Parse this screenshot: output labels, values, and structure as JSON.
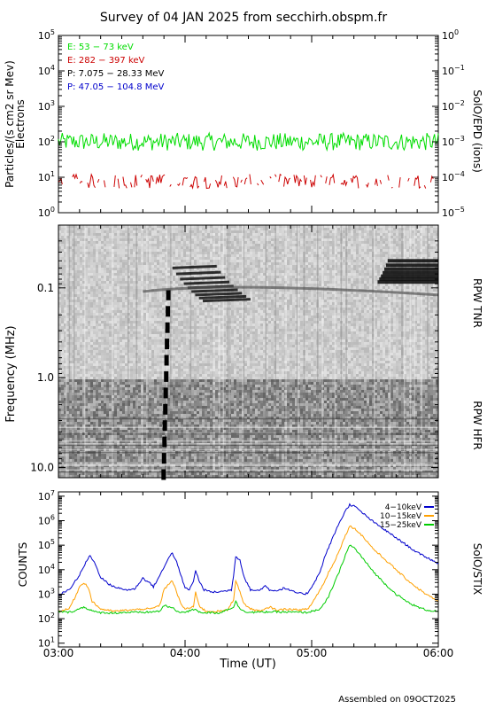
{
  "title": "Survey of 04 JAN 2025 from secchirh.obspm.fr",
  "footer": "Assembled on 09OCT2025",
  "chart_data": [
    {
      "type": "line",
      "panel": "epd",
      "ylabel_left": "Particles/(s cm2 sr Mev)",
      "ylabel_left2": "Electrons",
      "ylabel_right": "SolO/EPD (ions)",
      "log_y": true,
      "ylim_left": [
        1,
        100000
      ],
      "ylim_right": [
        1e-05,
        1
      ],
      "yticks_left": [
        {
          "base": "10",
          "exp": "0",
          "value": 1
        },
        {
          "base": "10",
          "exp": "1",
          "value": 10
        },
        {
          "base": "10",
          "exp": "2",
          "value": 100
        },
        {
          "base": "10",
          "exp": "3",
          "value": 1000
        },
        {
          "base": "10",
          "exp": "4",
          "value": 10000
        },
        {
          "base": "10",
          "exp": "5",
          "value": 100000
        }
      ],
      "yticks_right": [
        {
          "base": "10",
          "exp": "−5",
          "value": 1e-05
        },
        {
          "base": "10",
          "exp": "−4",
          "value": 0.0001
        },
        {
          "base": "10",
          "exp": "−3",
          "value": 0.001
        },
        {
          "base": "10",
          "exp": "−2",
          "value": 0.01
        },
        {
          "base": "10",
          "exp": "−1",
          "value": 0.1
        },
        {
          "base": "10",
          "exp": "0",
          "value": 1
        }
      ],
      "legend": [
        {
          "label": "E: 53 − 73 keV",
          "color": "#00dd00"
        },
        {
          "label": "E: 282 − 397 keV",
          "color": "#cc0000"
        },
        {
          "label": "P: 7.075 − 28.33 MeV",
          "color": "#000000"
        },
        {
          "label": "P: 47.05 − 104.8 MeV",
          "color": "#0000cc"
        }
      ],
      "series": [
        {
          "label": "E: 53 − 73 keV",
          "color": "#00dd00",
          "level": 100,
          "spread": 0.25
        },
        {
          "label": "E: 282 − 397 keV",
          "color": "#cc0000",
          "level": 7,
          "spread": 0.2
        }
      ]
    },
    {
      "type": "heatmap",
      "panel": "rpw",
      "ylabel": "Frequency (MHz)",
      "label_tnr": "RPW TNR",
      "label_hfr": "RPW HFR",
      "log_y": true,
      "inverted": true,
      "ylim": [
        0.02,
        13
      ],
      "boundary_mhz": 1.0,
      "yticks": [
        {
          "label": "0.1",
          "value": 0.1
        },
        {
          "label": "1.0",
          "value": 1.0
        },
        {
          "label": "10.0",
          "value": 10.0
        }
      ],
      "bursts": [
        {
          "name": "type-III burst",
          "t_start_min": 50,
          "t_peak_min": 51,
          "freq_low": 0.06,
          "freq_high": 12
        },
        {
          "name": "late emission",
          "t_start_min": 150,
          "freq_low": 0.05,
          "freq_high": 0.09
        }
      ]
    },
    {
      "type": "line",
      "panel": "stix",
      "ylabel": "COUNTS",
      "ylabel_right": "SolO/STIX",
      "xlabel": "Time (UT)",
      "log_y": true,
      "ylim": [
        7,
        15000000
      ],
      "xlim_min": [
        0,
        180
      ],
      "xticks": [
        {
          "label": "03:00",
          "value": 0
        },
        {
          "label": "04:00",
          "value": 60
        },
        {
          "label": "05:00",
          "value": 120
        },
        {
          "label": "06:00",
          "value": 180
        }
      ],
      "yticks": [
        {
          "base": "10",
          "exp": "1",
          "value": 10
        },
        {
          "base": "10",
          "exp": "2",
          "value": 100
        },
        {
          "base": "10",
          "exp": "3",
          "value": 1000
        },
        {
          "base": "10",
          "exp": "4",
          "value": 10000
        },
        {
          "base": "10",
          "exp": "5",
          "value": 100000
        },
        {
          "base": "10",
          "exp": "6",
          "value": 1000000
        },
        {
          "base": "10",
          "exp": "7",
          "value": 10000000
        }
      ],
      "series": [
        {
          "name": "4−10keV",
          "color": "#0000cc",
          "points": [
            [
              0,
              900
            ],
            [
              5,
              1500
            ],
            [
              10,
              6000
            ],
            [
              13,
              20000
            ],
            [
              15,
              38000
            ],
            [
              17,
              20000
            ],
            [
              20,
              5000
            ],
            [
              24,
              2500
            ],
            [
              28,
              1800
            ],
            [
              32,
              1500
            ],
            [
              36,
              1600
            ],
            [
              40,
              4500
            ],
            [
              43,
              3000
            ],
            [
              45,
              2000
            ],
            [
              47,
              4000
            ],
            [
              50,
              12000
            ],
            [
              52,
              30000
            ],
            [
              54,
              48000
            ],
            [
              56,
              20000
            ],
            [
              58,
              6000
            ],
            [
              60,
              1800
            ],
            [
              62,
              1500
            ],
            [
              64,
              3500
            ],
            [
              65,
              9000
            ],
            [
              67,
              3000
            ],
            [
              69,
              1500
            ],
            [
              73,
              1200
            ],
            [
              78,
              1300
            ],
            [
              82,
              1500
            ],
            [
              83,
              6000
            ],
            [
              84,
              35000
            ],
            [
              86,
              25000
            ],
            [
              88,
              5000
            ],
            [
              91,
              1500
            ],
            [
              95,
              1400
            ],
            [
              98,
              2200
            ],
            [
              100,
              1500
            ],
            [
              104,
              1400
            ],
            [
              107,
              1800
            ],
            [
              109,
              1500
            ],
            [
              112,
              1200
            ],
            [
              116,
              1000
            ],
            [
              118,
              1100
            ],
            [
              120,
              2000
            ],
            [
              122,
              4000
            ],
            [
              124,
              8000
            ],
            [
              126,
              30000
            ],
            [
              128,
              80000
            ],
            [
              130,
              200000
            ],
            [
              133,
              800000
            ],
            [
              136,
              2500000
            ],
            [
              138,
              4500000
            ],
            [
              140,
              4000000
            ],
            [
              143,
              2500000
            ],
            [
              146,
              1500000
            ],
            [
              150,
              800000
            ],
            [
              155,
              400000
            ],
            [
              160,
              200000
            ],
            [
              165,
              100000
            ],
            [
              170,
              50000
            ],
            [
              175,
              30000
            ],
            [
              180,
              18000
            ]
          ]
        },
        {
          "name": "10−15keV",
          "color": "#ffa000",
          "points": [
            [
              0,
              200
            ],
            [
              5,
              250
            ],
            [
              8,
              800
            ],
            [
              10,
              2000
            ],
            [
              12,
              3000
            ],
            [
              14,
              2000
            ],
            [
              16,
              500
            ],
            [
              20,
              250
            ],
            [
              26,
              200
            ],
            [
              32,
              220
            ],
            [
              36,
              230
            ],
            [
              40,
              250
            ],
            [
              44,
              250
            ],
            [
              48,
              350
            ],
            [
              50,
              1500
            ],
            [
              52,
              2500
            ],
            [
              54,
              3500
            ],
            [
              56,
              1200
            ],
            [
              58,
              400
            ],
            [
              60,
              250
            ],
            [
              64,
              300
            ],
            [
              65,
              1200
            ],
            [
              67,
              300
            ],
            [
              70,
              200
            ],
            [
              76,
              200
            ],
            [
              80,
              220
            ],
            [
              83,
              600
            ],
            [
              84,
              3800
            ],
            [
              86,
              1200
            ],
            [
              88,
              400
            ],
            [
              91,
              250
            ],
            [
              96,
              200
            ],
            [
              100,
              300
            ],
            [
              104,
              220
            ],
            [
              108,
              250
            ],
            [
              113,
              230
            ],
            [
              118,
              240
            ],
            [
              120,
              400
            ],
            [
              122,
              800
            ],
            [
              124,
              1500
            ],
            [
              126,
              3000
            ],
            [
              128,
              8000
            ],
            [
              130,
              15000
            ],
            [
              133,
              60000
            ],
            [
              136,
              250000
            ],
            [
              138,
              600000
            ],
            [
              140,
              500000
            ],
            [
              143,
              300000
            ],
            [
              146,
              150000
            ],
            [
              150,
              60000
            ],
            [
              155,
              25000
            ],
            [
              160,
              10000
            ],
            [
              165,
              4000
            ],
            [
              170,
              1800
            ],
            [
              175,
              900
            ],
            [
              180,
              500
            ]
          ]
        },
        {
          "name": "15−25keV",
          "color": "#00cc00",
          "points": [
            [
              0,
              200
            ],
            [
              5,
              180
            ],
            [
              10,
              250
            ],
            [
              12,
              300
            ],
            [
              14,
              250
            ],
            [
              18,
              180
            ],
            [
              26,
              170
            ],
            [
              32,
              180
            ],
            [
              40,
              180
            ],
            [
              48,
              200
            ],
            [
              50,
              350
            ],
            [
              52,
              300
            ],
            [
              54,
              280
            ],
            [
              56,
              200
            ],
            [
              60,
              180
            ],
            [
              65,
              250
            ],
            [
              67,
              180
            ],
            [
              76,
              170
            ],
            [
              83,
              300
            ],
            [
              84,
              500
            ],
            [
              86,
              250
            ],
            [
              90,
              180
            ],
            [
              100,
              190
            ],
            [
              110,
              185
            ],
            [
              118,
              180
            ],
            [
              120,
              200
            ],
            [
              124,
              250
            ],
            [
              126,
              400
            ],
            [
              128,
              800
            ],
            [
              130,
              2000
            ],
            [
              133,
              8000
            ],
            [
              136,
              40000
            ],
            [
              138,
              100000
            ],
            [
              140,
              80000
            ],
            [
              143,
              40000
            ],
            [
              146,
              18000
            ],
            [
              150,
              7000
            ],
            [
              155,
              2500
            ],
            [
              160,
              1000
            ],
            [
              165,
              500
            ],
            [
              170,
              300
            ],
            [
              175,
              220
            ],
            [
              180,
              200
            ]
          ]
        }
      ]
    }
  ]
}
